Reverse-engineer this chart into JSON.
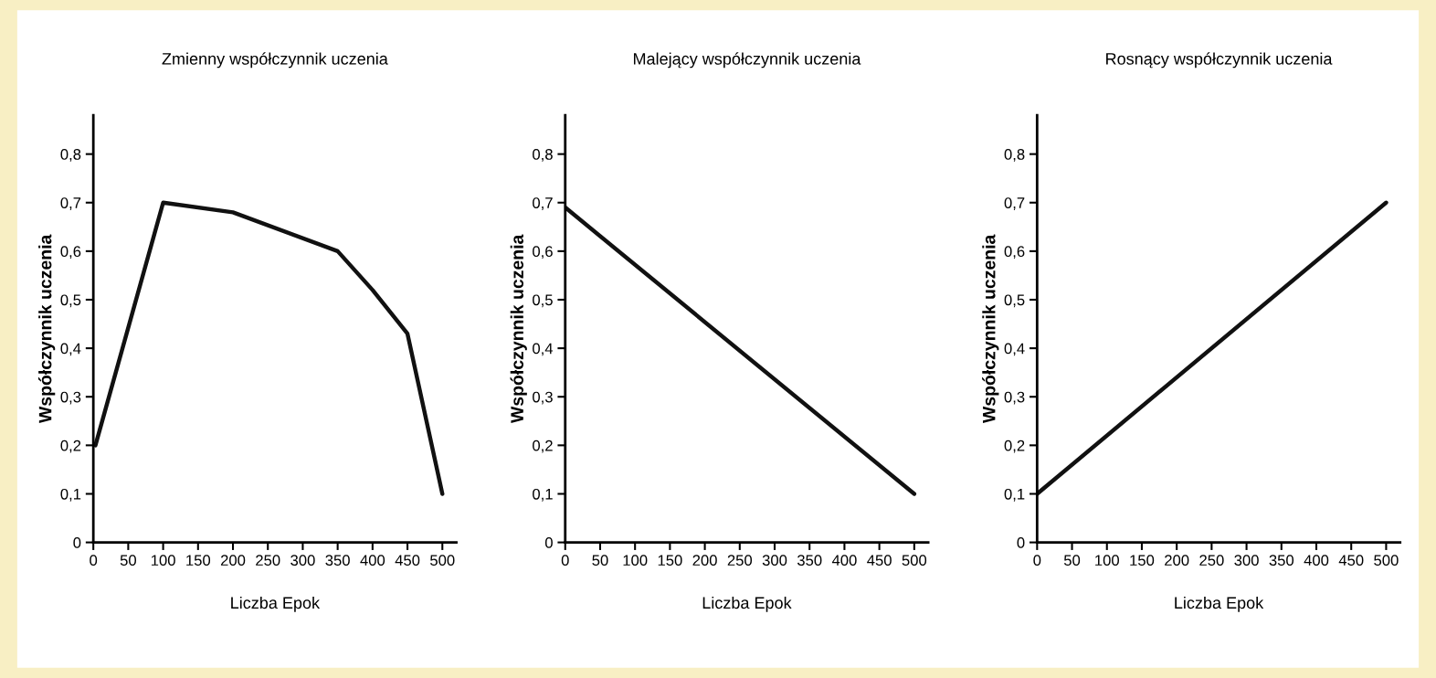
{
  "chart_data": [
    {
      "type": "line",
      "title": "Zmienny współczynnik uczenia",
      "xlabel": "Liczba Epok",
      "ylabel": "Współczynnik uczenia",
      "x": [
        3,
        100,
        200,
        350,
        400,
        450,
        500
      ],
      "series": [
        {
          "color": "#111111",
          "values": [
            0.2,
            0.7,
            0.68,
            0.6,
            0.52,
            0.43,
            0.1
          ]
        }
      ],
      "xlim": [
        0,
        520
      ],
      "ylim": [
        0,
        0.88
      ],
      "xticks": [
        0,
        50,
        100,
        150,
        200,
        250,
        300,
        350,
        400,
        450,
        500
      ],
      "yticks": [
        0,
        {
          "value": 0.1,
          "label": "0,1"
        },
        {
          "value": 0.2,
          "label": "0,2"
        },
        {
          "value": 0.3,
          "label": "0,3"
        },
        {
          "value": 0.4,
          "label": "0,4"
        },
        {
          "value": 0.5,
          "label": "0,5"
        },
        {
          "value": 0.6,
          "label": "0,6"
        },
        {
          "value": 0.7,
          "label": "0,7"
        },
        {
          "value": 0.8,
          "label": "0,8"
        }
      ],
      "grid": false,
      "legend": false,
      "marker": "none",
      "line_style": "solid"
    },
    {
      "type": "line",
      "title": "Malejący współczynnik uczenia",
      "xlabel": "Liczba Epok",
      "ylabel": "Współczynnik uczenia",
      "x": [
        0,
        500
      ],
      "series": [
        {
          "color": "#111111",
          "values": [
            0.69,
            0.1
          ]
        }
      ],
      "xlim": [
        0,
        520
      ],
      "ylim": [
        0,
        0.88
      ],
      "xticks": [
        0,
        50,
        100,
        150,
        200,
        250,
        300,
        350,
        400,
        450,
        500
      ],
      "yticks": [
        0,
        {
          "value": 0.1,
          "label": "0,1"
        },
        {
          "value": 0.2,
          "label": "0,2"
        },
        {
          "value": 0.3,
          "label": "0,3"
        },
        {
          "value": 0.4,
          "label": "0,4"
        },
        {
          "value": 0.5,
          "label": "0,5"
        },
        {
          "value": 0.6,
          "label": "0,6"
        },
        {
          "value": 0.7,
          "label": "0,7"
        },
        {
          "value": 0.8,
          "label": "0,8"
        }
      ],
      "grid": false,
      "legend": false,
      "marker": "none",
      "line_style": "solid"
    },
    {
      "type": "line",
      "title": "Rosnący współczynnik uczenia",
      "xlabel": "Liczba Epok",
      "ylabel": "Współczynnik uczenia",
      "x": [
        0,
        500
      ],
      "series": [
        {
          "color": "#111111",
          "values": [
            0.1,
            0.7
          ]
        }
      ],
      "xlim": [
        0,
        520
      ],
      "ylim": [
        0,
        0.88
      ],
      "xticks": [
        0,
        50,
        100,
        150,
        200,
        250,
        300,
        350,
        400,
        450,
        500
      ],
      "yticks": [
        0,
        {
          "value": 0.1,
          "label": "0,1"
        },
        {
          "value": 0.2,
          "label": "0,2"
        },
        {
          "value": 0.3,
          "label": "0,3"
        },
        {
          "value": 0.4,
          "label": "0,4"
        },
        {
          "value": 0.5,
          "label": "0,5"
        },
        {
          "value": 0.6,
          "label": "0,6"
        },
        {
          "value": 0.7,
          "label": "0,7"
        },
        {
          "value": 0.8,
          "label": "0,8"
        }
      ],
      "grid": false,
      "legend": false,
      "marker": "none",
      "line_style": "solid"
    }
  ]
}
